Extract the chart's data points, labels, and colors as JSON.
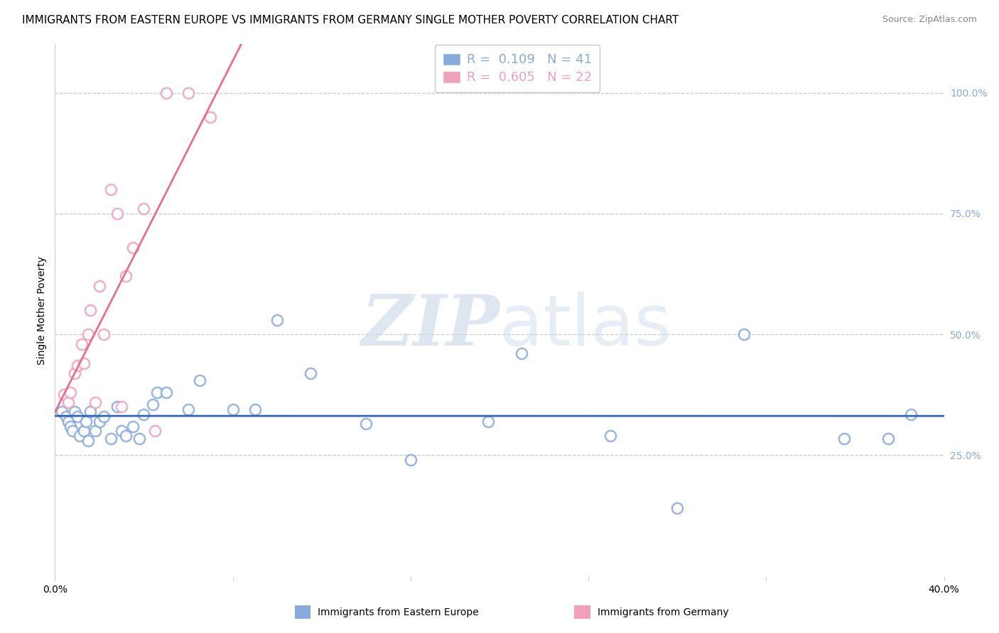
{
  "title": "IMMIGRANTS FROM EASTERN EUROPE VS IMMIGRANTS FROM GERMANY SINGLE MOTHER POVERTY CORRELATION CHART",
  "source": "Source: ZipAtlas.com",
  "ylabel": "Single Mother Poverty",
  "right_yticks": [
    "100.0%",
    "75.0%",
    "50.0%",
    "25.0%"
  ],
  "right_ytick_vals": [
    1.0,
    0.75,
    0.5,
    0.25
  ],
  "xlim": [
    0.0,
    0.4
  ],
  "ylim": [
    0.0,
    1.1
  ],
  "legend1_label": "R =  0.109   N = 41",
  "legend2_label": "R =  0.605   N = 22",
  "legend1_color": "#88aadd",
  "legend2_color": "#f0a0b8",
  "watermark_color": "#c8d8e8",
  "blue_x": [
    0.003,
    0.005,
    0.006,
    0.007,
    0.008,
    0.009,
    0.01,
    0.011,
    0.013,
    0.014,
    0.015,
    0.016,
    0.018,
    0.02,
    0.022,
    0.025,
    0.028,
    0.03,
    0.032,
    0.035,
    0.038,
    0.04,
    0.044,
    0.046,
    0.05,
    0.06,
    0.065,
    0.08,
    0.09,
    0.1,
    0.115,
    0.14,
    0.16,
    0.195,
    0.21,
    0.25,
    0.28,
    0.31,
    0.355,
    0.375,
    0.385
  ],
  "blue_y": [
    0.34,
    0.33,
    0.32,
    0.31,
    0.3,
    0.34,
    0.33,
    0.29,
    0.3,
    0.32,
    0.28,
    0.34,
    0.3,
    0.32,
    0.33,
    0.285,
    0.35,
    0.3,
    0.29,
    0.31,
    0.285,
    0.335,
    0.355,
    0.38,
    0.38,
    0.345,
    0.405,
    0.345,
    0.345,
    0.53,
    0.42,
    0.315,
    0.24,
    0.32,
    0.46,
    0.29,
    0.14,
    0.5,
    0.285,
    0.285,
    0.335
  ],
  "pink_x": [
    0.004,
    0.006,
    0.007,
    0.009,
    0.01,
    0.012,
    0.013,
    0.015,
    0.016,
    0.018,
    0.02,
    0.022,
    0.025,
    0.028,
    0.03,
    0.032,
    0.035,
    0.04,
    0.045,
    0.05,
    0.06,
    0.07
  ],
  "pink_y": [
    0.375,
    0.36,
    0.38,
    0.42,
    0.435,
    0.48,
    0.44,
    0.5,
    0.55,
    0.36,
    0.6,
    0.5,
    0.8,
    0.75,
    0.35,
    0.62,
    0.68,
    0.76,
    0.3,
    1.0,
    1.0,
    0.95
  ],
  "blue_line_color": "#3366bb",
  "pink_line_color": "#e8708a",
  "grid_color": "#cccccc",
  "bg_color": "#ffffff",
  "title_fontsize": 11,
  "tick_fontsize": 10,
  "label_fontsize": 10
}
